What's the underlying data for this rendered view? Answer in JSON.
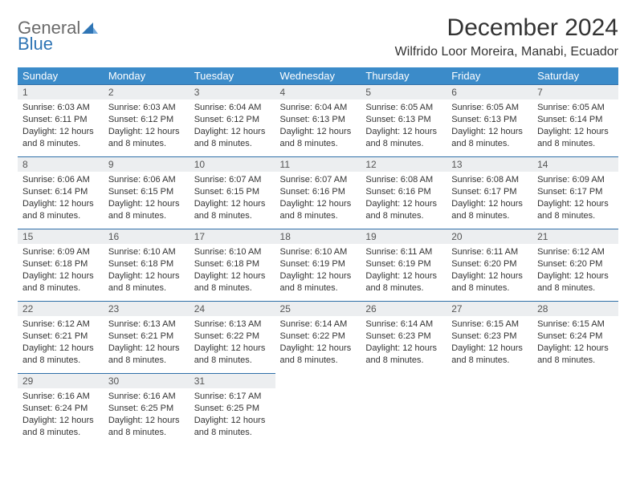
{
  "logo": {
    "line1": "General",
    "line2": "Blue"
  },
  "title": "December 2024",
  "location": "Wilfrido Loor Moreira, Manabi, Ecuador",
  "colors": {
    "header_bg": "#3b8bc9",
    "header_text": "#ffffff",
    "daynum_bg": "#eceef0",
    "daynum_border": "#2f6fa8",
    "body_text": "#333333",
    "logo_gray": "#6b6b6b",
    "logo_blue": "#2f75b5"
  },
  "weekdays": [
    "Sunday",
    "Monday",
    "Tuesday",
    "Wednesday",
    "Thursday",
    "Friday",
    "Saturday"
  ],
  "weeks": [
    [
      {
        "n": "1",
        "sunrise": "Sunrise: 6:03 AM",
        "sunset": "Sunset: 6:11 PM",
        "day1": "Daylight: 12 hours",
        "day2": "and 8 minutes."
      },
      {
        "n": "2",
        "sunrise": "Sunrise: 6:03 AM",
        "sunset": "Sunset: 6:12 PM",
        "day1": "Daylight: 12 hours",
        "day2": "and 8 minutes."
      },
      {
        "n": "3",
        "sunrise": "Sunrise: 6:04 AM",
        "sunset": "Sunset: 6:12 PM",
        "day1": "Daylight: 12 hours",
        "day2": "and 8 minutes."
      },
      {
        "n": "4",
        "sunrise": "Sunrise: 6:04 AM",
        "sunset": "Sunset: 6:13 PM",
        "day1": "Daylight: 12 hours",
        "day2": "and 8 minutes."
      },
      {
        "n": "5",
        "sunrise": "Sunrise: 6:05 AM",
        "sunset": "Sunset: 6:13 PM",
        "day1": "Daylight: 12 hours",
        "day2": "and 8 minutes."
      },
      {
        "n": "6",
        "sunrise": "Sunrise: 6:05 AM",
        "sunset": "Sunset: 6:13 PM",
        "day1": "Daylight: 12 hours",
        "day2": "and 8 minutes."
      },
      {
        "n": "7",
        "sunrise": "Sunrise: 6:05 AM",
        "sunset": "Sunset: 6:14 PM",
        "day1": "Daylight: 12 hours",
        "day2": "and 8 minutes."
      }
    ],
    [
      {
        "n": "8",
        "sunrise": "Sunrise: 6:06 AM",
        "sunset": "Sunset: 6:14 PM",
        "day1": "Daylight: 12 hours",
        "day2": "and 8 minutes."
      },
      {
        "n": "9",
        "sunrise": "Sunrise: 6:06 AM",
        "sunset": "Sunset: 6:15 PM",
        "day1": "Daylight: 12 hours",
        "day2": "and 8 minutes."
      },
      {
        "n": "10",
        "sunrise": "Sunrise: 6:07 AM",
        "sunset": "Sunset: 6:15 PM",
        "day1": "Daylight: 12 hours",
        "day2": "and 8 minutes."
      },
      {
        "n": "11",
        "sunrise": "Sunrise: 6:07 AM",
        "sunset": "Sunset: 6:16 PM",
        "day1": "Daylight: 12 hours",
        "day2": "and 8 minutes."
      },
      {
        "n": "12",
        "sunrise": "Sunrise: 6:08 AM",
        "sunset": "Sunset: 6:16 PM",
        "day1": "Daylight: 12 hours",
        "day2": "and 8 minutes."
      },
      {
        "n": "13",
        "sunrise": "Sunrise: 6:08 AM",
        "sunset": "Sunset: 6:17 PM",
        "day1": "Daylight: 12 hours",
        "day2": "and 8 minutes."
      },
      {
        "n": "14",
        "sunrise": "Sunrise: 6:09 AM",
        "sunset": "Sunset: 6:17 PM",
        "day1": "Daylight: 12 hours",
        "day2": "and 8 minutes."
      }
    ],
    [
      {
        "n": "15",
        "sunrise": "Sunrise: 6:09 AM",
        "sunset": "Sunset: 6:18 PM",
        "day1": "Daylight: 12 hours",
        "day2": "and 8 minutes."
      },
      {
        "n": "16",
        "sunrise": "Sunrise: 6:10 AM",
        "sunset": "Sunset: 6:18 PM",
        "day1": "Daylight: 12 hours",
        "day2": "and 8 minutes."
      },
      {
        "n": "17",
        "sunrise": "Sunrise: 6:10 AM",
        "sunset": "Sunset: 6:18 PM",
        "day1": "Daylight: 12 hours",
        "day2": "and 8 minutes."
      },
      {
        "n": "18",
        "sunrise": "Sunrise: 6:10 AM",
        "sunset": "Sunset: 6:19 PM",
        "day1": "Daylight: 12 hours",
        "day2": "and 8 minutes."
      },
      {
        "n": "19",
        "sunrise": "Sunrise: 6:11 AM",
        "sunset": "Sunset: 6:19 PM",
        "day1": "Daylight: 12 hours",
        "day2": "and 8 minutes."
      },
      {
        "n": "20",
        "sunrise": "Sunrise: 6:11 AM",
        "sunset": "Sunset: 6:20 PM",
        "day1": "Daylight: 12 hours",
        "day2": "and 8 minutes."
      },
      {
        "n": "21",
        "sunrise": "Sunrise: 6:12 AM",
        "sunset": "Sunset: 6:20 PM",
        "day1": "Daylight: 12 hours",
        "day2": "and 8 minutes."
      }
    ],
    [
      {
        "n": "22",
        "sunrise": "Sunrise: 6:12 AM",
        "sunset": "Sunset: 6:21 PM",
        "day1": "Daylight: 12 hours",
        "day2": "and 8 minutes."
      },
      {
        "n": "23",
        "sunrise": "Sunrise: 6:13 AM",
        "sunset": "Sunset: 6:21 PM",
        "day1": "Daylight: 12 hours",
        "day2": "and 8 minutes."
      },
      {
        "n": "24",
        "sunrise": "Sunrise: 6:13 AM",
        "sunset": "Sunset: 6:22 PM",
        "day1": "Daylight: 12 hours",
        "day2": "and 8 minutes."
      },
      {
        "n": "25",
        "sunrise": "Sunrise: 6:14 AM",
        "sunset": "Sunset: 6:22 PM",
        "day1": "Daylight: 12 hours",
        "day2": "and 8 minutes."
      },
      {
        "n": "26",
        "sunrise": "Sunrise: 6:14 AM",
        "sunset": "Sunset: 6:23 PM",
        "day1": "Daylight: 12 hours",
        "day2": "and 8 minutes."
      },
      {
        "n": "27",
        "sunrise": "Sunrise: 6:15 AM",
        "sunset": "Sunset: 6:23 PM",
        "day1": "Daylight: 12 hours",
        "day2": "and 8 minutes."
      },
      {
        "n": "28",
        "sunrise": "Sunrise: 6:15 AM",
        "sunset": "Sunset: 6:24 PM",
        "day1": "Daylight: 12 hours",
        "day2": "and 8 minutes."
      }
    ],
    [
      {
        "n": "29",
        "sunrise": "Sunrise: 6:16 AM",
        "sunset": "Sunset: 6:24 PM",
        "day1": "Daylight: 12 hours",
        "day2": "and 8 minutes."
      },
      {
        "n": "30",
        "sunrise": "Sunrise: 6:16 AM",
        "sunset": "Sunset: 6:25 PM",
        "day1": "Daylight: 12 hours",
        "day2": "and 8 minutes."
      },
      {
        "n": "31",
        "sunrise": "Sunrise: 6:17 AM",
        "sunset": "Sunset: 6:25 PM",
        "day1": "Daylight: 12 hours",
        "day2": "and 8 minutes."
      },
      null,
      null,
      null,
      null
    ]
  ]
}
